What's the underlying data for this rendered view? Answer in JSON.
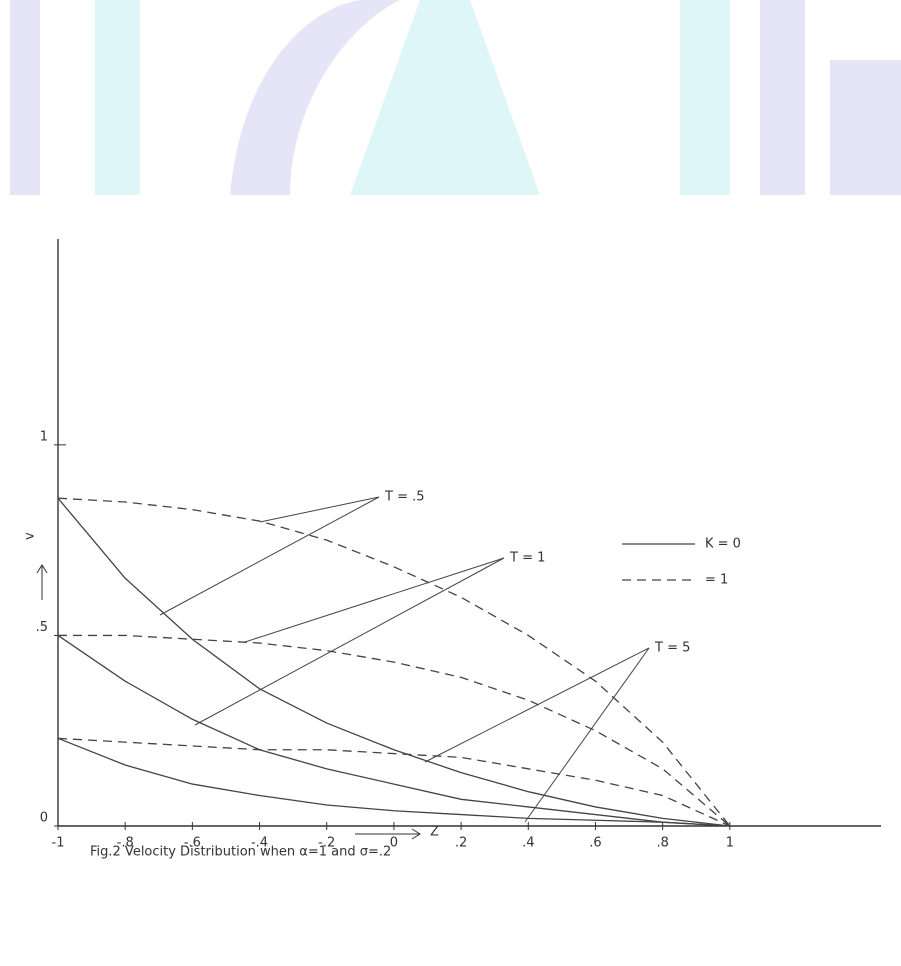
{
  "chart_data": {
    "type": "line",
    "caption": "Fig.2 Velocity Distribution when α=1 and σ=.2",
    "x_label": "Z",
    "y_label": "v",
    "x": [
      -1,
      -0.8,
      -0.6,
      -0.4,
      -0.2,
      0,
      0.2,
      0.4,
      0.6,
      0.8,
      1
    ],
    "series": [
      {
        "name": "T = .5",
        "lines": [
          {
            "style": "solid",
            "values": [
              0.86,
              0.65,
              0.49,
              0.36,
              0.27,
              0.2,
              0.14,
              0.09,
              0.05,
              0.02,
              0
            ]
          },
          {
            "style": "dashed",
            "values": [
              0.86,
              0.85,
              0.83,
              0.8,
              0.75,
              0.68,
              0.6,
              0.5,
              0.38,
              0.22,
              0
            ]
          }
        ]
      },
      {
        "name": "T = 1",
        "lines": [
          {
            "style": "solid",
            "values": [
              0.5,
              0.38,
              0.28,
              0.2,
              0.15,
              0.11,
              0.07,
              0.05,
              0.03,
              0.01,
              0
            ]
          },
          {
            "style": "dashed",
            "values": [
              0.5,
              0.5,
              0.49,
              0.48,
              0.46,
              0.43,
              0.39,
              0.33,
              0.25,
              0.15,
              0
            ]
          }
        ]
      },
      {
        "name": "T = 5",
        "lines": [
          {
            "style": "solid",
            "values": [
              0.23,
              0.16,
              0.11,
              0.08,
              0.055,
              0.04,
              0.03,
              0.02,
              0.015,
              0.01,
              0
            ]
          },
          {
            "style": "dashed",
            "values": [
              0.23,
              0.22,
              0.21,
              0.2,
              0.2,
              0.19,
              0.18,
              0.15,
              0.12,
              0.08,
              0
            ]
          }
        ]
      }
    ],
    "color": "#444444",
    "legend": [
      {
        "label": "K = 0",
        "style": "solid"
      },
      {
        "label": "= 1",
        "style": "dashed"
      }
    ],
    "xlim": [
      -1,
      1.45
    ],
    "ylim": [
      0,
      1.54
    ],
    "xticks": [
      {
        "value": -1,
        "label": "-1"
      },
      {
        "value": -0.8,
        "label": "-.8"
      },
      {
        "value": -0.6,
        "label": "-.6"
      },
      {
        "value": -0.4,
        "label": "-.4"
      },
      {
        "value": -0.2,
        "label": "-.2"
      },
      0,
      {
        "value": 0.2,
        "label": ".2"
      },
      {
        "value": 0.4,
        "label": ".4"
      },
      {
        "value": 0.6,
        "label": ".6"
      },
      {
        "value": 0.8,
        "label": ".8"
      },
      1
    ],
    "yticks": [
      0,
      {
        "value": 0.5,
        "label": ".5"
      },
      1
    ]
  }
}
